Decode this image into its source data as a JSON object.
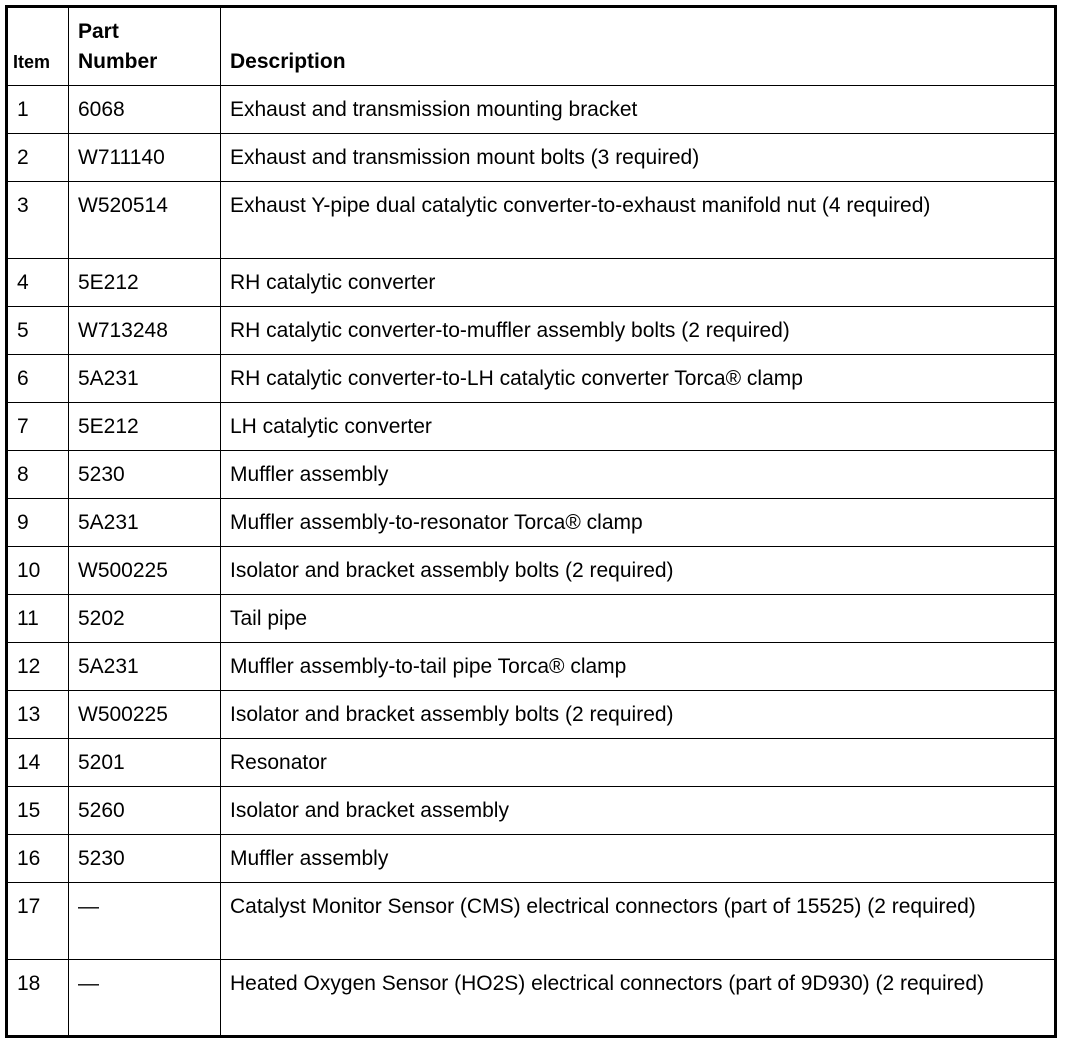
{
  "headers": {
    "item": "Item",
    "part_number": "Part Number",
    "description": "Description"
  },
  "rows": [
    {
      "item": "1",
      "part": "6068",
      "desc": "Exhaust and transmission mounting bracket"
    },
    {
      "item": "2",
      "part": "W711140",
      "desc": "Exhaust and transmission mount bolts (3 required)"
    },
    {
      "item": "3",
      "part": "W520514",
      "desc": "Exhaust Y-pipe dual catalytic converter-to-exhaust manifold nut (4 required)"
    },
    {
      "item": "4",
      "part": "5E212",
      "desc": "RH catalytic converter"
    },
    {
      "item": "5",
      "part": "W713248",
      "desc": "RH catalytic converter-to-muffler assembly bolts (2 required)"
    },
    {
      "item": "6",
      "part": "5A231",
      "desc": "RH catalytic converter-to-LH catalytic converter Torca® clamp"
    },
    {
      "item": "7",
      "part": "5E212",
      "desc": "LH catalytic converter"
    },
    {
      "item": "8",
      "part": "5230",
      "desc": "Muffler assembly"
    },
    {
      "item": "9",
      "part": "5A231",
      "desc": "Muffler assembly-to-resonator Torca® clamp"
    },
    {
      "item": "10",
      "part": "W500225",
      "desc": "Isolator and bracket assembly bolts (2 required)"
    },
    {
      "item": "11",
      "part": "5202",
      "desc": "Tail pipe"
    },
    {
      "item": "12",
      "part": "5A231",
      "desc": "Muffler assembly-to-tail pipe Torca® clamp"
    },
    {
      "item": "13",
      "part": "W500225",
      "desc": "Isolator and bracket assembly bolts (2 required)"
    },
    {
      "item": "14",
      "part": "5201",
      "desc": "Resonator"
    },
    {
      "item": "15",
      "part": "5260",
      "desc": "Isolator and bracket assembly"
    },
    {
      "item": "16",
      "part": "5230",
      "desc": "Muffler assembly"
    },
    {
      "item": "17",
      "part": "—",
      "desc": "Catalyst Monitor Sensor (CMS) electrical connectors (part of 15525) (2 required)"
    },
    {
      "item": "18",
      "part": "—",
      "desc": "Heated Oxygen Sensor (HO2S) electrical connectors (part of 9D930) (2 required)"
    }
  ]
}
